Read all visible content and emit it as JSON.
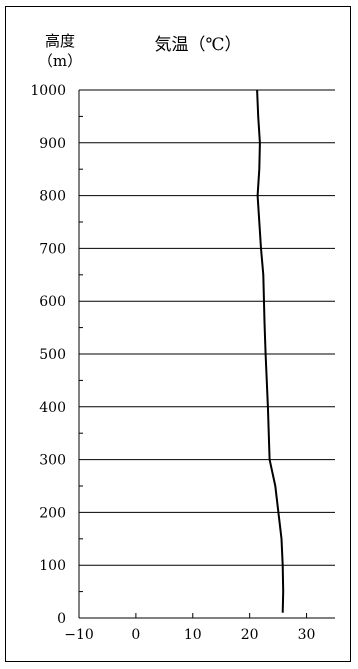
{
  "chart_data": {
    "type": "line",
    "title": "気温（℃）",
    "ylabel_line1": "高度",
    "ylabel_line2": "（m）",
    "xlim": [
      -10,
      35
    ],
    "ylim": [
      0,
      1000
    ],
    "x_ticks": [
      -10,
      0,
      10,
      20,
      30
    ],
    "x_tick_labels": [
      "−10",
      "0",
      "10",
      "20",
      "30"
    ],
    "y_ticks": [
      0,
      100,
      200,
      300,
      400,
      500,
      600,
      700,
      800,
      900,
      1000
    ],
    "y_tick_labels": [
      "0",
      "100",
      "200",
      "300",
      "400",
      "500",
      "600",
      "700",
      "800",
      "900",
      "1000"
    ],
    "grid": "horizontal",
    "series": [
      {
        "x": [
          25.8,
          25.9,
          25.8,
          25.6,
          24.5,
          23.5,
          23.2,
          22.8,
          22.6,
          22.4,
          22.0,
          21.4,
          21.7,
          21.8,
          21.5,
          21.3
        ],
        "y": [
          10,
          50,
          100,
          150,
          250,
          300,
          400,
          500,
          560,
          650,
          700,
          800,
          850,
          900,
          950,
          1000
        ]
      }
    ]
  }
}
